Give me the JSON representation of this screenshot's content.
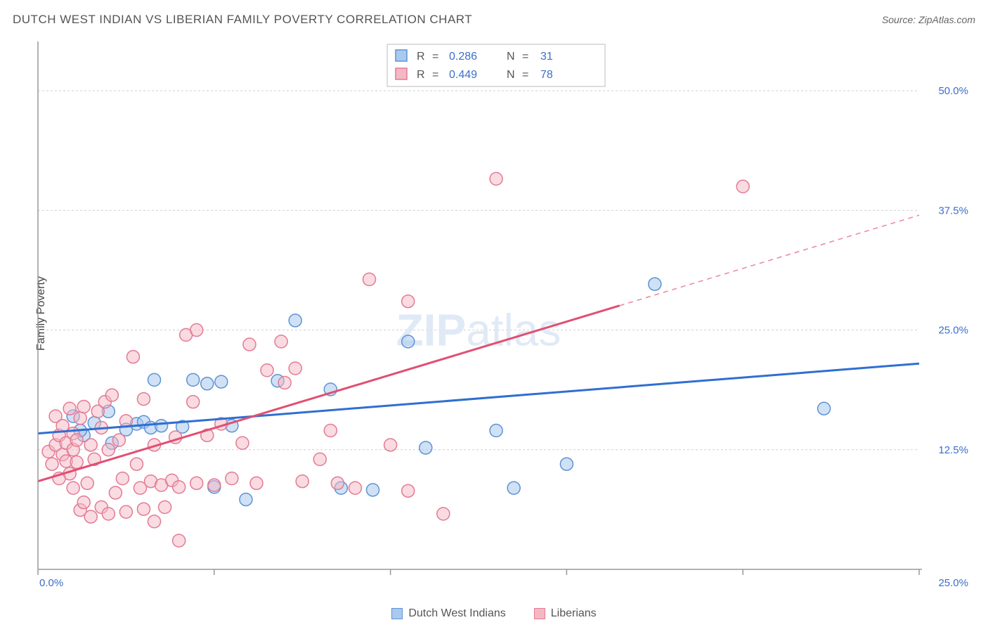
{
  "title": "DUTCH WEST INDIAN VS LIBERIAN FAMILY POVERTY CORRELATION CHART",
  "source_prefix": "Source: ",
  "source_name": "ZipAtlas.com",
  "ylabel": "Family Poverty",
  "watermark_a": "ZIP",
  "watermark_b": "atlas",
  "chart": {
    "background": "#ffffff",
    "grid_color": "#d0d0d0",
    "axis_color": "#999999",
    "tick_label_color": "#3b6fc9",
    "xlim": [
      0,
      25
    ],
    "ylim": [
      0,
      55
    ],
    "yticks": [
      12.5,
      25.0,
      37.5,
      50.0
    ],
    "ytick_labels": [
      "12.5%",
      "25.0%",
      "37.5%",
      "50.0%"
    ],
    "xticks": [
      0,
      5,
      10,
      15,
      20,
      25
    ],
    "xtick_min_label": "0.0%",
    "xtick_max_label": "25.0%",
    "series": [
      {
        "id": "dutch",
        "label": "Dutch West Indians",
        "r_value": "0.286",
        "n_value": "31",
        "fill": "#a9c9ed",
        "stroke": "#5c93d6",
        "line_color": "#2f6fd0",
        "line_dash": "none",
        "regression": {
          "x1": 0,
          "y1": 14.2,
          "x2": 25,
          "y2": 21.5
        },
        "marker_r": 9,
        "marker_opacity": 0.55,
        "points": [
          [
            1.0,
            16.0
          ],
          [
            1.3,
            14.0
          ],
          [
            1.6,
            15.3
          ],
          [
            2.0,
            16.5
          ],
          [
            2.1,
            13.2
          ],
          [
            2.5,
            14.6
          ],
          [
            2.8,
            15.2
          ],
          [
            3.0,
            15.4
          ],
          [
            3.2,
            14.8
          ],
          [
            3.3,
            19.8
          ],
          [
            3.5,
            15.0
          ],
          [
            4.1,
            14.9
          ],
          [
            4.4,
            19.8
          ],
          [
            4.8,
            19.4
          ],
          [
            5.0,
            8.6
          ],
          [
            5.2,
            19.6
          ],
          [
            5.5,
            15.0
          ],
          [
            5.9,
            7.3
          ],
          [
            6.8,
            19.7
          ],
          [
            7.3,
            26.0
          ],
          [
            8.3,
            18.8
          ],
          [
            8.6,
            8.5
          ],
          [
            9.5,
            8.3
          ],
          [
            10.5,
            23.8
          ],
          [
            11.0,
            12.7
          ],
          [
            13.0,
            14.5
          ],
          [
            13.5,
            8.5
          ],
          [
            15.0,
            11.0
          ],
          [
            17.5,
            29.8
          ],
          [
            22.3,
            16.8
          ],
          [
            1.2,
            14.5
          ]
        ]
      },
      {
        "id": "liberian",
        "label": "Liberians",
        "r_value": "0.449",
        "n_value": "78",
        "fill": "#f4b8c4",
        "stroke": "#e47a93",
        "line_color": "#e14f72",
        "line_dash": "solid_then_dash",
        "regression": {
          "x1": 0,
          "y1": 9.2,
          "x2": 25,
          "y2": 37.0
        },
        "regression_dash_from_x": 16.5,
        "marker_r": 9,
        "marker_opacity": 0.5,
        "points": [
          [
            0.3,
            12.3
          ],
          [
            0.4,
            11.0
          ],
          [
            0.5,
            13.0
          ],
          [
            0.5,
            16.0
          ],
          [
            0.6,
            14.0
          ],
          [
            0.7,
            12.0
          ],
          [
            0.7,
            15.0
          ],
          [
            0.8,
            13.2
          ],
          [
            0.8,
            11.3
          ],
          [
            0.9,
            16.8
          ],
          [
            0.9,
            10.0
          ],
          [
            1.0,
            14.2
          ],
          [
            1.0,
            12.5
          ],
          [
            1.1,
            11.2
          ],
          [
            1.1,
            13.5
          ],
          [
            1.2,
            15.8
          ],
          [
            1.2,
            6.2
          ],
          [
            1.3,
            17.0
          ],
          [
            1.3,
            7.0
          ],
          [
            1.4,
            9.0
          ],
          [
            1.5,
            5.5
          ],
          [
            1.5,
            13.0
          ],
          [
            1.6,
            11.5
          ],
          [
            1.7,
            16.5
          ],
          [
            1.8,
            6.5
          ],
          [
            1.8,
            14.8
          ],
          [
            1.9,
            17.5
          ],
          [
            2.0,
            12.5
          ],
          [
            2.0,
            5.8
          ],
          [
            2.1,
            18.2
          ],
          [
            2.2,
            8.0
          ],
          [
            2.3,
            13.5
          ],
          [
            2.4,
            9.5
          ],
          [
            2.5,
            6.0
          ],
          [
            2.5,
            15.5
          ],
          [
            2.7,
            22.2
          ],
          [
            2.8,
            11.0
          ],
          [
            2.9,
            8.5
          ],
          [
            3.0,
            6.3
          ],
          [
            3.0,
            17.8
          ],
          [
            3.2,
            9.2
          ],
          [
            3.3,
            5.0
          ],
          [
            3.3,
            13.0
          ],
          [
            3.5,
            8.8
          ],
          [
            3.6,
            6.5
          ],
          [
            3.8,
            9.3
          ],
          [
            3.9,
            13.8
          ],
          [
            4.0,
            3.0
          ],
          [
            4.0,
            8.6
          ],
          [
            4.2,
            24.5
          ],
          [
            4.4,
            17.5
          ],
          [
            4.5,
            25.0
          ],
          [
            4.5,
            9.0
          ],
          [
            4.8,
            14.0
          ],
          [
            5.0,
            8.8
          ],
          [
            5.2,
            15.2
          ],
          [
            5.5,
            9.5
          ],
          [
            5.8,
            13.2
          ],
          [
            6.0,
            23.5
          ],
          [
            6.2,
            9.0
          ],
          [
            6.5,
            20.8
          ],
          [
            6.9,
            23.8
          ],
          [
            7.0,
            19.5
          ],
          [
            7.3,
            21.0
          ],
          [
            7.5,
            9.2
          ],
          [
            8.0,
            11.5
          ],
          [
            8.3,
            14.5
          ],
          [
            8.5,
            9.0
          ],
          [
            9.0,
            8.5
          ],
          [
            9.4,
            30.3
          ],
          [
            10.0,
            13.0
          ],
          [
            10.5,
            28.0
          ],
          [
            10.5,
            8.2
          ],
          [
            11.5,
            5.8
          ],
          [
            13.0,
            40.8
          ],
          [
            20.0,
            40.0
          ],
          [
            0.6,
            9.5
          ],
          [
            1.0,
            8.5
          ]
        ]
      }
    ]
  },
  "bottom_legend": [
    {
      "label": "Dutch West Indians",
      "fill": "#a9c9ed",
      "stroke": "#5c93d6"
    },
    {
      "label": "Liberians",
      "fill": "#f4b8c4",
      "stroke": "#e47a93"
    }
  ]
}
